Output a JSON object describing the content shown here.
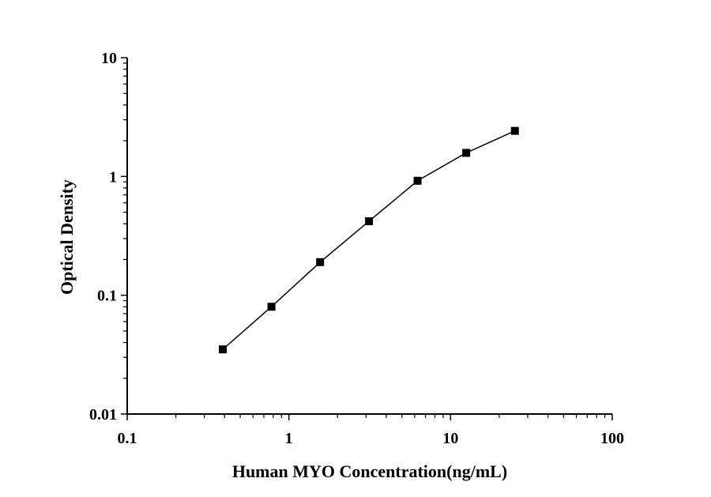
{
  "chart_data": {
    "type": "scatter",
    "title": "",
    "xlabel": "Human MYO Concentration(ng/mL)",
    "ylabel": "Optical Density",
    "xscale": "log",
    "yscale": "log",
    "xlim": [
      0.1,
      100
    ],
    "ylim": [
      0.01,
      10
    ],
    "xticks": [
      "0.1",
      "1",
      "10",
      "100"
    ],
    "yticks": [
      "0.01",
      "0.1",
      "1",
      "10"
    ],
    "grid": false,
    "legend": "none",
    "series": [
      {
        "marker": "square",
        "connected": true,
        "color": "#000000",
        "x": [
          0.39,
          0.78,
          1.56,
          3.13,
          6.25,
          12.5,
          25
        ],
        "y": [
          0.035,
          0.08,
          0.19,
          0.42,
          0.92,
          1.58,
          2.42
        ]
      }
    ]
  }
}
